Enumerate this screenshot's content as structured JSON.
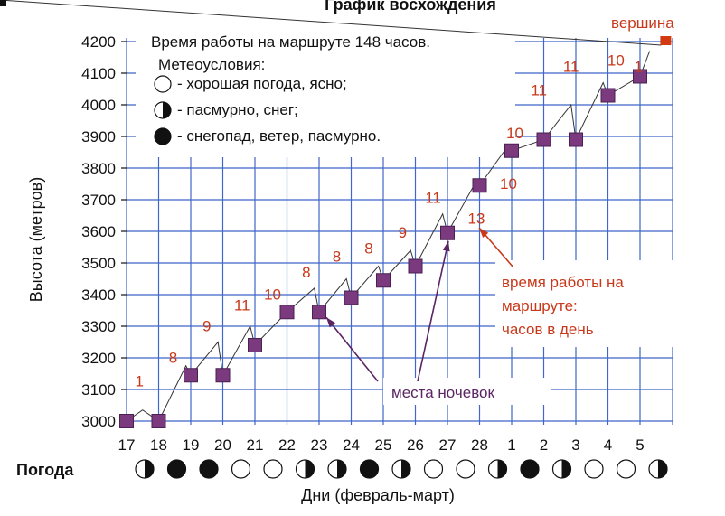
{
  "colors": {
    "grid": "#3f66c8",
    "camp": "#7b3a7e",
    "camp_stroke": "#4a1f52",
    "intermediate": "#111111",
    "hours_text": "#c8391b",
    "summit": "#d23a14",
    "annotation_purple": "#5b2463"
  },
  "chart_data": {
    "type": "line",
    "title": "График восхождения",
    "xlabel": "Дни (февраль-март)",
    "ylabel": "Высота (метров)",
    "ylim": [
      3000,
      4200
    ],
    "y_ticks": [
      "3000",
      "3100",
      "3200",
      "3300",
      "3400",
      "3500",
      "3600",
      "3700",
      "3800",
      "3900",
      "4000",
      "4100",
      "4200"
    ],
    "x_ticks": [
      "17",
      "18",
      "19",
      "20",
      "21",
      "22",
      "23",
      "24",
      "25",
      "26",
      "27",
      "28",
      "1",
      "2",
      "3",
      "4",
      "5"
    ],
    "grid": true,
    "legend": {
      "line1": "Время работы на маршруте 148 часов.",
      "line2": "Метеоусловия:",
      "items": [
        {
          "symbol": "empty",
          "label": "- хорошая погода, ясно;"
        },
        {
          "symbol": "half",
          "label": "- пасмурно, снег;"
        },
        {
          "symbol": "full",
          "label": "- снегопад, ветер, пасмурно."
        }
      ]
    },
    "camps": {
      "name": "места ночевок",
      "points": [
        {
          "day": 0,
          "alt": 3000
        },
        {
          "day": 1,
          "alt": 3000
        },
        {
          "day": 2,
          "alt": 3145
        },
        {
          "day": 3,
          "alt": 3145
        },
        {
          "day": 4,
          "alt": 3240
        },
        {
          "day": 5,
          "alt": 3345
        },
        {
          "day": 6,
          "alt": 3345
        },
        {
          "day": 7,
          "alt": 3390
        },
        {
          "day": 8,
          "alt": 3445
        },
        {
          "day": 9,
          "alt": 3490
        },
        {
          "day": 10,
          "alt": 3595
        },
        {
          "day": 11,
          "alt": 3745
        },
        {
          "day": 12,
          "alt": 3855
        },
        {
          "day": 13,
          "alt": 3890
        },
        {
          "day": 14,
          "alt": 3890
        },
        {
          "day": 15,
          "alt": 4030
        },
        {
          "day": 16,
          "alt": 4090
        }
      ]
    },
    "intermediate": {
      "points": [
        {
          "day": 0.5,
          "alt": 3035
        },
        {
          "day": 1.85,
          "alt": 3175
        },
        {
          "day": 2.85,
          "alt": 3250
        },
        {
          "day": 3.85,
          "alt": 3300
        },
        {
          "day": 5.85,
          "alt": 3420
        },
        {
          "day": 6.85,
          "alt": 3450
        },
        {
          "day": 7.85,
          "alt": 3490
        },
        {
          "day": 8.85,
          "alt": 3540
        },
        {
          "day": 9.85,
          "alt": 3655
        },
        {
          "day": 10.85,
          "alt": 3750
        },
        {
          "day": 11.85,
          "alt": 3865
        },
        {
          "day": 13.85,
          "alt": 4000
        },
        {
          "day": 14.85,
          "alt": 4070
        },
        {
          "day": 16.3,
          "alt": 4170
        }
      ]
    },
    "hours_labels": [
      {
        "text": "1",
        "day": 0.4,
        "alt": 3110
      },
      {
        "text": "8",
        "day": 1.45,
        "alt": 3185
      },
      {
        "text": "9",
        "day": 2.5,
        "alt": 3285
      },
      {
        "text": "11",
        "day": 3.6,
        "alt": 3350
      },
      {
        "text": "10",
        "day": 4.55,
        "alt": 3385
      },
      {
        "text": "8",
        "day": 5.6,
        "alt": 3455
      },
      {
        "text": "8",
        "day": 6.55,
        "alt": 3505
      },
      {
        "text": "8",
        "day": 7.55,
        "alt": 3530
      },
      {
        "text": "9",
        "day": 8.6,
        "alt": 3580
      },
      {
        "text": "11",
        "day": 9.55,
        "alt": 3690
      },
      {
        "text": "13",
        "day": 10.9,
        "alt": 3625
      },
      {
        "text": "10",
        "day": 11.9,
        "alt": 3735
      },
      {
        "text": "10",
        "day": 12.1,
        "alt": 3895
      },
      {
        "text": "11",
        "day": 12.85,
        "alt": 4030
      },
      {
        "text": "11",
        "day": 13.85,
        "alt": 4105
      },
      {
        "text": "10",
        "day": 15.25,
        "alt": 4125
      },
      {
        "text": "1",
        "day": 15.95,
        "alt": 4105
      }
    ],
    "summit": {
      "label": "вершина",
      "day": 16.8,
      "alt": 4200
    },
    "annotations": {
      "hours_note": [
        "время работы на",
        "маршруте:",
        "часов в день"
      ],
      "camps_note": "места ночевок"
    },
    "weather": {
      "label": "Погода",
      "symbols": [
        "half",
        "full",
        "full",
        "empty",
        "empty",
        "half",
        "half",
        "full",
        "half",
        "empty",
        "empty",
        "half",
        "full",
        "half",
        "empty",
        "empty",
        "half"
      ]
    }
  }
}
